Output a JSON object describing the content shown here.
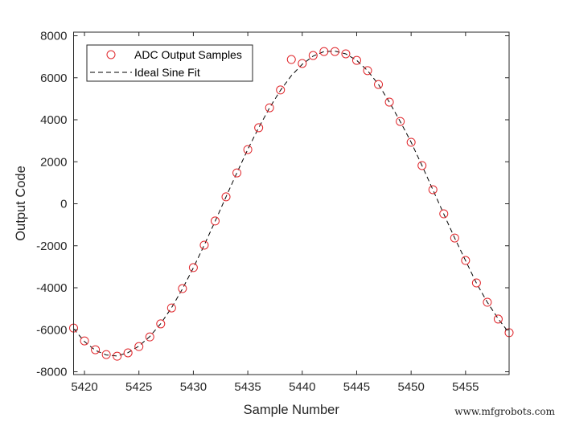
{
  "chart_data": {
    "type": "scatter",
    "title": "",
    "xlabel": "Sample Number",
    "ylabel": "Output Code",
    "xlim": [
      5419,
      5459
    ],
    "ylim": [
      -8000,
      8000
    ],
    "xticks": [
      5420,
      5425,
      5430,
      5435,
      5440,
      5445,
      5450,
      5455
    ],
    "yticks": [
      -8000,
      -6000,
      -4000,
      -2000,
      0,
      2000,
      4000,
      6000,
      8000
    ],
    "grid": false,
    "legend_position": "upper left",
    "x": [
      5419,
      5420,
      5421,
      5422,
      5423,
      5424,
      5425,
      5426,
      5427,
      5428,
      5429,
      5430,
      5431,
      5432,
      5433,
      5434,
      5435,
      5436,
      5437,
      5438,
      5439,
      5440,
      5441,
      5442,
      5443,
      5444,
      5445,
      5446,
      5447,
      5448,
      5449,
      5450,
      5451,
      5452,
      5453,
      5454,
      5455,
      5456,
      5457,
      5458,
      5459
    ],
    "series": [
      {
        "name": "ADC Output Samples",
        "style": "red open circles",
        "color": "#e0262b",
        "values": [
          -5920,
          -6530,
          -6950,
          -7180,
          -7260,
          -7100,
          -6800,
          -6340,
          -5720,
          -4960,
          -4040,
          -3040,
          -1970,
          -820,
          330,
          1470,
          2580,
          3620,
          4570,
          5420,
          6870,
          6680,
          7060,
          7250,
          7250,
          7140,
          6830,
          6340,
          5680,
          4840,
          3920,
          2930,
          1820,
          670,
          -480,
          -1630,
          -2700,
          -3770,
          -4690,
          -5490,
          -6140
        ]
      },
      {
        "name": "Ideal Sine Fit",
        "style": "black dashed line",
        "color": "#000000",
        "values": [
          -5950,
          -6560,
          -6980,
          -7200,
          -7250,
          -7090,
          -6780,
          -6320,
          -5710,
          -4950,
          -4050,
          -3050,
          -1970,
          -830,
          330,
          1480,
          2590,
          3620,
          4570,
          5400,
          6100,
          6640,
          7030,
          7250,
          7270,
          7140,
          6830,
          6340,
          5680,
          4840,
          3920,
          2930,
          1820,
          670,
          -490,
          -1630,
          -2710,
          -3780,
          -4690,
          -5480,
          -6150
        ]
      }
    ]
  },
  "legend": {
    "items": [
      {
        "label": "ADC Output Samples"
      },
      {
        "label": "Ideal Sine Fit"
      }
    ]
  },
  "axes": {
    "xlabel": "Sample Number",
    "ylabel": "Output Code"
  },
  "watermark": "www.mfgrobots.com"
}
